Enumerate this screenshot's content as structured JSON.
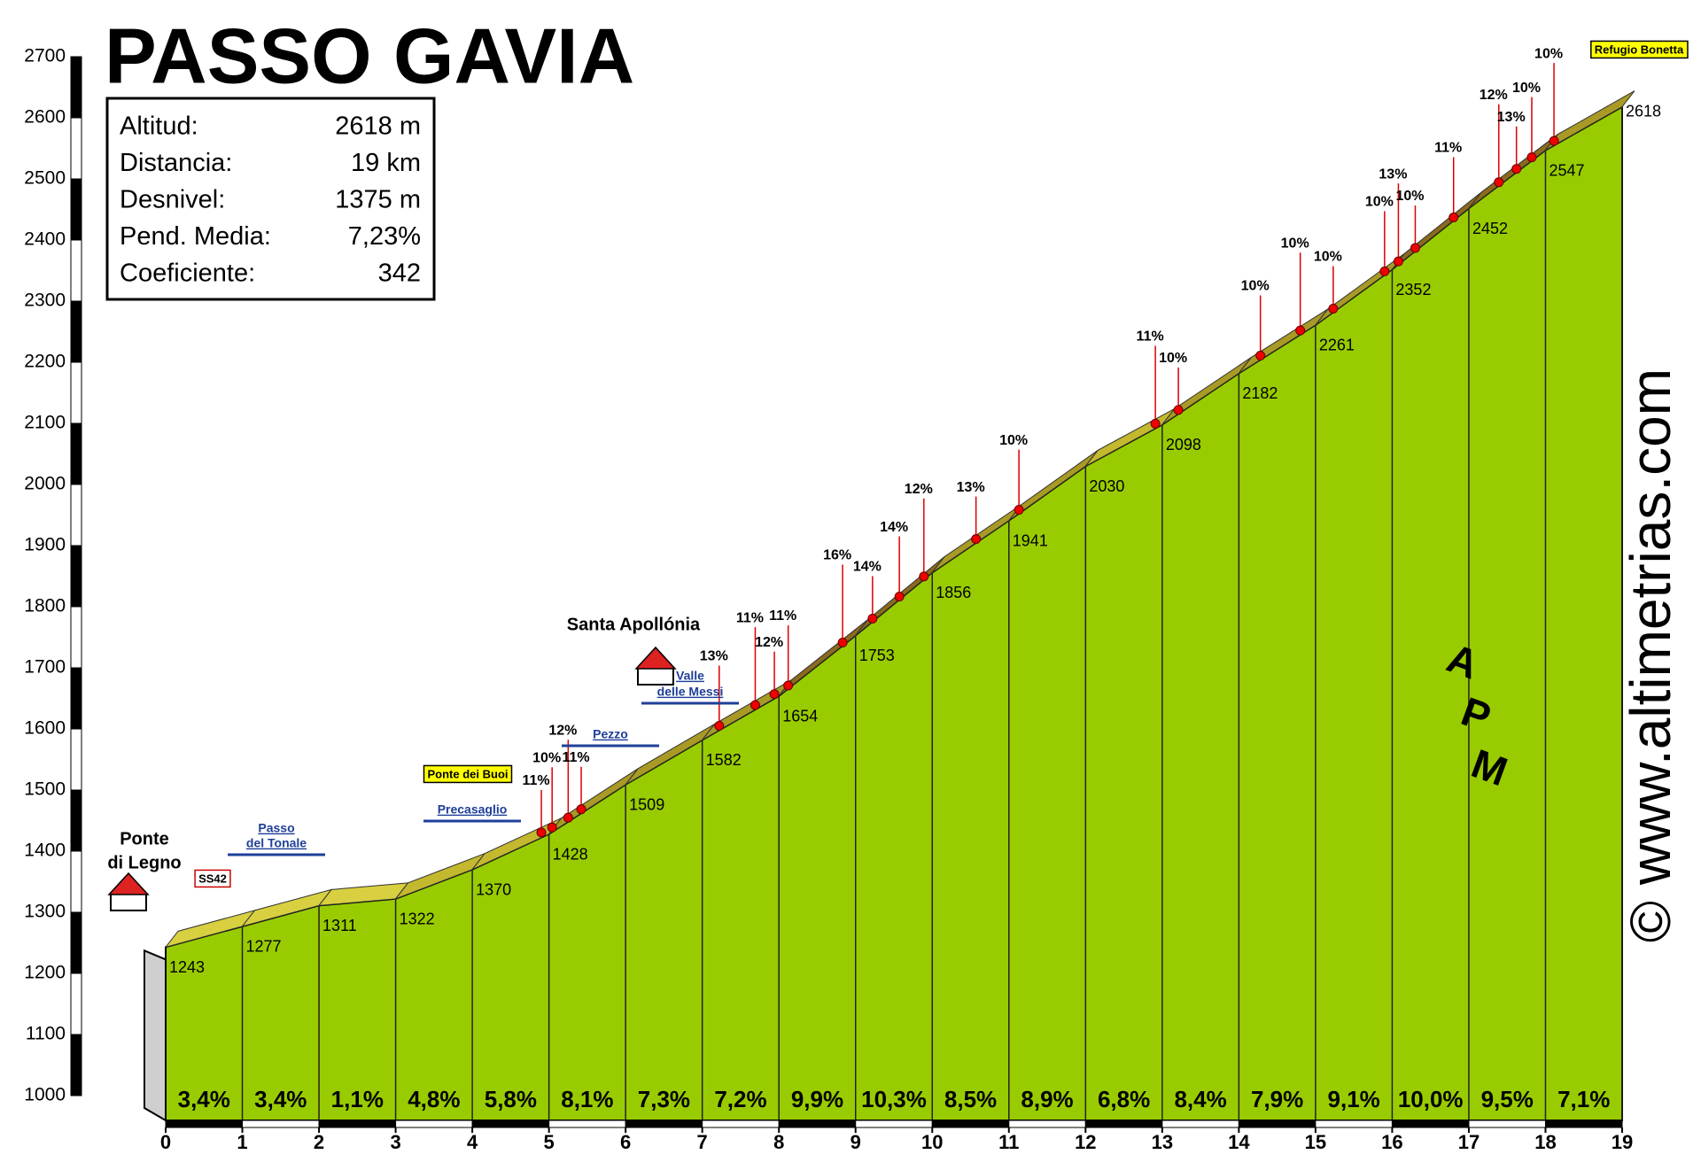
{
  "chart_data": {
    "type": "area",
    "title": "PASSO GAVIA",
    "info": [
      {
        "label": "Altitud:",
        "value": "2618 m"
      },
      {
        "label": "Distancia:",
        "value": "19 km"
      },
      {
        "label": "Desnivel:",
        "value": "1375 m"
      },
      {
        "label": "Pend. Media:",
        "value": "7,23%"
      },
      {
        "label": "Coeficiente:",
        "value": "342"
      }
    ],
    "x": [
      0,
      1,
      2,
      3,
      4,
      5,
      6,
      7,
      8,
      9,
      10,
      11,
      12,
      13,
      14,
      15,
      16,
      17,
      18,
      19
    ],
    "values": [
      1243,
      1277,
      1311,
      1322,
      1370,
      1428,
      1509,
      1582,
      1654,
      1753,
      1856,
      1941,
      2030,
      2098,
      2182,
      2261,
      2352,
      2452,
      2547,
      2618
    ],
    "color": "#99cc00",
    "xlim": [
      0,
      19
    ],
    "xticks": [
      0,
      1,
      2,
      3,
      4,
      5,
      6,
      7,
      8,
      9,
      10,
      11,
      12,
      13,
      14,
      15,
      16,
      17,
      18,
      19
    ],
    "ylim": [
      1000,
      2700
    ],
    "yticks": [
      1000,
      1100,
      1200,
      1300,
      1400,
      1500,
      1600,
      1700,
      1800,
      1900,
      2000,
      2100,
      2200,
      2300,
      2400,
      2500,
      2600,
      2700
    ],
    "segment_gradients": {
      "values": [
        3.4,
        3.4,
        1.1,
        4.8,
        5.8,
        8.1,
        7.3,
        7.2,
        9.9,
        10.3,
        8.5,
        8.9,
        6.8,
        8.4,
        7.9,
        9.1,
        10.0,
        9.5,
        7.1
      ],
      "value_labels": [
        "3,4%",
        "3,4%",
        "1,1%",
        "4,8%",
        "5,8%",
        "8,1%",
        "7,3%",
        "7,2%",
        "9,9%",
        "10,3%",
        "8,5%",
        "8,9%",
        "6,8%",
        "8,4%",
        "7,9%",
        "9,1%",
        "10,0%",
        "9,5%",
        "7,1%"
      ]
    },
    "steep_points": [
      {
        "x": 4.82,
        "label": "11%"
      },
      {
        "x": 4.96,
        "label": "10%"
      },
      {
        "x": 5.17,
        "label": "12%"
      },
      {
        "x": 5.34,
        "label": "11%"
      },
      {
        "x": 7.14,
        "label": "13%"
      },
      {
        "x": 7.61,
        "label": "11%"
      },
      {
        "x": 7.86,
        "label": "12%"
      },
      {
        "x": 8.04,
        "label": "11%"
      },
      {
        "x": 8.75,
        "label": "16%"
      },
      {
        "x": 9.14,
        "label": "14%"
      },
      {
        "x": 9.49,
        "label": "14%"
      },
      {
        "x": 9.81,
        "label": "12%"
      },
      {
        "x": 10.49,
        "label": "13%"
      },
      {
        "x": 11.05,
        "label": "10%"
      },
      {
        "x": 12.83,
        "label": "11%"
      },
      {
        "x": 13.13,
        "label": "10%"
      },
      {
        "x": 14.2,
        "label": "10%"
      },
      {
        "x": 14.72,
        "label": "10%"
      },
      {
        "x": 15.15,
        "label": "10%"
      },
      {
        "x": 15.82,
        "label": "10%"
      },
      {
        "x": 16.0,
        "label": "13%"
      },
      {
        "x": 16.22,
        "label": "10%"
      },
      {
        "x": 16.72,
        "label": "11%"
      },
      {
        "x": 17.31,
        "label": "12%"
      },
      {
        "x": 17.54,
        "label": "13%"
      },
      {
        "x": 17.74,
        "label": "10%"
      },
      {
        "x": 18.03,
        "label": "10%"
      }
    ],
    "places": [
      {
        "lines": [
          "Ponte",
          "di Legno"
        ]
      },
      {
        "lines": [
          "SS42"
        ]
      },
      {
        "lines": [
          "Passo",
          "del Tonale"
        ]
      },
      {
        "lines": [
          "Ponte dei Buoi"
        ]
      },
      {
        "lines": [
          "Precasaglio"
        ]
      },
      {
        "lines": [
          "Pezzo"
        ]
      },
      {
        "lines": [
          "Santa Apollónia"
        ]
      },
      {
        "lines": [
          "Valle",
          "delle Messi"
        ]
      },
      {
        "lines": [
          "Refugio Bonetta"
        ]
      }
    ],
    "watermark": "© www.altimetrias.com",
    "logo_letters": [
      "A",
      "P",
      "M"
    ]
  }
}
